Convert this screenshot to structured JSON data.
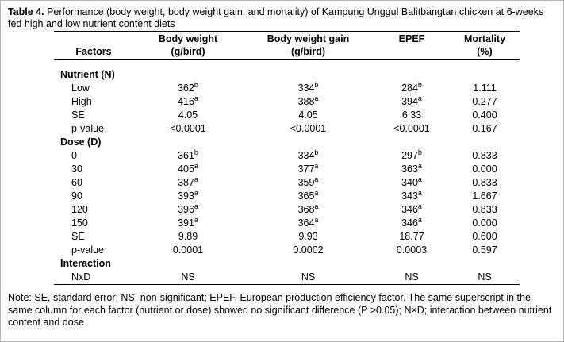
{
  "title": {
    "label": "Table 4.",
    "text": " Performance (body weight, body weight gain, and mortality) of Kampung Unggul Balitbangtan chicken at 6-weeks fed high and low nutrient content diets"
  },
  "table": {
    "headers": [
      {
        "line1": "",
        "line2": "Factors"
      },
      {
        "line1": "Body weight",
        "line2": "(g/bird)"
      },
      {
        "line1": "Body weight gain",
        "line2": "(g/bird)"
      },
      {
        "line1": "EPEF",
        "line2": ""
      },
      {
        "line1": "Mortality",
        "line2": "(%)"
      }
    ],
    "rows": [
      {
        "section": true,
        "factor": "Nutrient (N)"
      },
      {
        "factor": "Low",
        "cells": [
          {
            "v": "362",
            "s": "b"
          },
          {
            "v": "334",
            "s": "b"
          },
          {
            "v": "284",
            "s": "b"
          },
          {
            "v": "1.111",
            "s": ""
          }
        ]
      },
      {
        "factor": "High",
        "cells": [
          {
            "v": "416",
            "s": "a"
          },
          {
            "v": "388",
            "s": "a"
          },
          {
            "v": "394",
            "s": "a"
          },
          {
            "v": "0.277",
            "s": ""
          }
        ]
      },
      {
        "factor": "SE",
        "cells": [
          {
            "v": "4.05",
            "s": ""
          },
          {
            "v": "4.05",
            "s": ""
          },
          {
            "v": "6.33",
            "s": ""
          },
          {
            "v": "0.400",
            "s": ""
          }
        ]
      },
      {
        "factor": "p-value",
        "cells": [
          {
            "v": "<0.0001",
            "s": ""
          },
          {
            "v": "<0.0001",
            "s": ""
          },
          {
            "v": "<0.0001",
            "s": ""
          },
          {
            "v": "0.167",
            "s": ""
          }
        ]
      },
      {
        "section": true,
        "factor": "Dose (D)"
      },
      {
        "factor": "0",
        "cells": [
          {
            "v": "361",
            "s": "b"
          },
          {
            "v": "334",
            "s": "b"
          },
          {
            "v": "297",
            "s": "b"
          },
          {
            "v": "0.833",
            "s": ""
          }
        ]
      },
      {
        "factor": "30",
        "cells": [
          {
            "v": "405",
            "s": "a"
          },
          {
            "v": "377",
            "s": "a"
          },
          {
            "v": "363",
            "s": "a"
          },
          {
            "v": "0.000",
            "s": ""
          }
        ]
      },
      {
        "factor": "60",
        "cells": [
          {
            "v": "387",
            "s": "a"
          },
          {
            "v": "359",
            "s": "a"
          },
          {
            "v": "340",
            "s": "a"
          },
          {
            "v": "0.833",
            "s": ""
          }
        ]
      },
      {
        "factor": "90",
        "cells": [
          {
            "v": "393",
            "s": "a"
          },
          {
            "v": "365",
            "s": "a"
          },
          {
            "v": "343",
            "s": "a"
          },
          {
            "v": "1.667",
            "s": ""
          }
        ]
      },
      {
        "factor": "120",
        "cells": [
          {
            "v": "396",
            "s": "a"
          },
          {
            "v": "368",
            "s": "a"
          },
          {
            "v": "346",
            "s": "a"
          },
          {
            "v": "0.833",
            "s": ""
          }
        ]
      },
      {
        "factor": "150",
        "cells": [
          {
            "v": "391",
            "s": "a"
          },
          {
            "v": "364",
            "s": "a"
          },
          {
            "v": "346",
            "s": "a"
          },
          {
            "v": "0.000",
            "s": ""
          }
        ]
      },
      {
        "factor": "SE",
        "cells": [
          {
            "v": "9.89",
            "s": ""
          },
          {
            "v": "9.93",
            "s": ""
          },
          {
            "v": "18.77",
            "s": ""
          },
          {
            "v": "0.600",
            "s": ""
          }
        ]
      },
      {
        "factor": "p-value",
        "cells": [
          {
            "v": "0.0001",
            "s": ""
          },
          {
            "v": "0.0002",
            "s": ""
          },
          {
            "v": "0.0003",
            "s": ""
          },
          {
            "v": "0.597",
            "s": ""
          }
        ]
      },
      {
        "section": true,
        "factor": "Interaction"
      },
      {
        "factor": "NxD",
        "cells": [
          {
            "v": "NS",
            "s": ""
          },
          {
            "v": "NS",
            "s": ""
          },
          {
            "v": "NS",
            "s": ""
          },
          {
            "v": "NS",
            "s": ""
          }
        ]
      }
    ]
  },
  "note": "Note: SE, standard error; NS, non-significant; EPEF, European production efficiency factor. The same superscript in the same column for each factor (nutrient or dose) showed no significant difference (P >0.05); N×D; interaction between nutrient content and dose"
}
